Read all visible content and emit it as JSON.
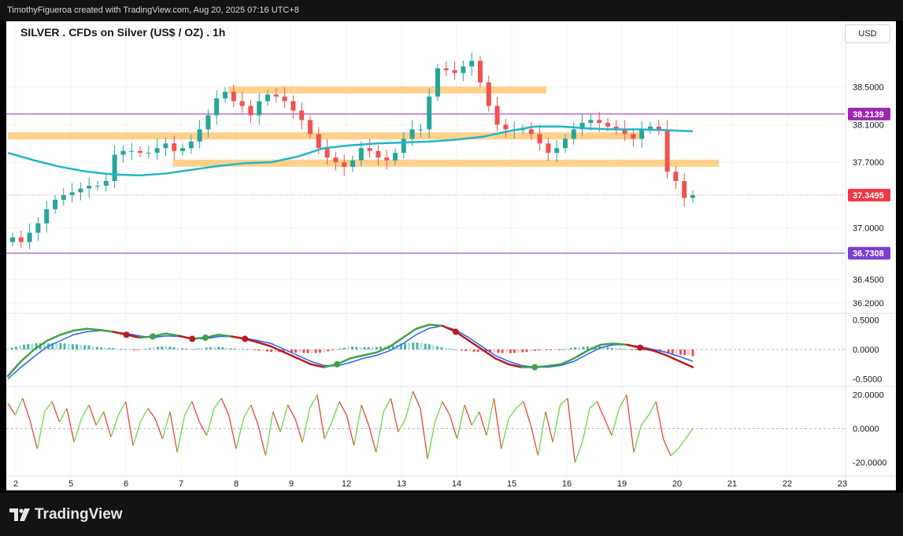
{
  "header": {
    "caption": "TimothyFigueroa created with TradingView.com, Aug 20, 2025 07:16 UTC+8"
  },
  "footer": {
    "brand": "TradingView"
  },
  "chart_data": {
    "type": "candlestick",
    "title": "SILVER . CFDs on Silver (US$ / OZ) . 1h",
    "currency": "USD",
    "price_axis": {
      "ylim": [
        36.1,
        38.95
      ],
      "ticks": [
        38.5,
        38.1,
        37.7,
        37.0,
        36.45,
        36.2
      ],
      "tick_labels": [
        "38.5000",
        "38.1000",
        "37.7000",
        "37.0000",
        "36.4500",
        "36.2000"
      ]
    },
    "x_axis": {
      "labels": [
        "2",
        "5",
        "6",
        "7",
        "8",
        "9",
        "12",
        "13",
        "14",
        "15",
        "16",
        "19",
        "20",
        "21",
        "22",
        "23"
      ]
    },
    "levels": [
      {
        "label": "38.2139",
        "value": 38.2139,
        "color": "#9c27b0"
      },
      {
        "label": "36.7308",
        "value": 36.7308,
        "color": "#7b3fd0"
      }
    ],
    "last_price": {
      "label": "37.3495",
      "value": 37.3495,
      "color": "#f23645"
    },
    "zones": [
      {
        "from": "8",
        "to": "16",
        "value": 38.47
      },
      {
        "from": "2",
        "to": "19",
        "value": 37.98
      },
      {
        "from": "7",
        "to": "21",
        "value": 37.69
      }
    ],
    "close": [
      36.9,
      36.85,
      36.95,
      37.05,
      37.2,
      37.3,
      37.35,
      37.38,
      37.42,
      37.45,
      37.45,
      37.5,
      37.78,
      37.82,
      37.82,
      37.8,
      37.8,
      37.85,
      37.9,
      37.82,
      37.85,
      37.92,
      38.05,
      38.2,
      38.38,
      38.45,
      38.35,
      38.3,
      38.2,
      38.35,
      38.42,
      38.4,
      38.35,
      38.25,
      38.15,
      38.0,
      37.85,
      37.75,
      37.7,
      37.65,
      37.72,
      37.85,
      37.82,
      37.75,
      37.72,
      37.8,
      37.95,
      38.05,
      38.05,
      38.4,
      38.7,
      38.68,
      38.65,
      38.72,
      38.78,
      38.55,
      38.3,
      38.1,
      38.05,
      38.05,
      38.05,
      38.0,
      37.9,
      37.8,
      37.85,
      37.95,
      38.05,
      38.12,
      38.15,
      38.12,
      38.08,
      38.05,
      38.0,
      37.95,
      38.05,
      38.08,
      38.05,
      37.6,
      37.5,
      37.32,
      37.35
    ],
    "ema": [
      37.8,
      37.72,
      37.65,
      37.6,
      37.57,
      37.56,
      37.58,
      37.62,
      37.66,
      37.69,
      37.7,
      37.76,
      37.85,
      37.88,
      37.9,
      37.91,
      37.92,
      37.94,
      37.97,
      38.03,
      38.08,
      38.08,
      38.06,
      38.05,
      38.05,
      38.04,
      38.03
    ],
    "ema_color": "#22b5c4",
    "macd": {
      "ylim": [
        -0.6,
        0.6
      ],
      "ticks": [
        0.5,
        0.0,
        -0.5
      ],
      "tick_labels": [
        "0.5000",
        "0.0000",
        "-0.5000"
      ],
      "fast": [
        -0.45,
        -0.2,
        0.0,
        0.15,
        0.25,
        0.32,
        0.35,
        0.33,
        0.3,
        0.25,
        0.2,
        0.22,
        0.27,
        0.23,
        0.18,
        0.2,
        0.25,
        0.22,
        0.18,
        0.12,
        0.05,
        -0.05,
        -0.15,
        -0.25,
        -0.3,
        -0.25,
        -0.15,
        -0.1,
        -0.05,
        0.05,
        0.2,
        0.35,
        0.42,
        0.4,
        0.3,
        0.15,
        0.0,
        -0.15,
        -0.25,
        -0.3,
        -0.3,
        -0.28,
        -0.25,
        -0.15,
        -0.02,
        0.08,
        0.1,
        0.08,
        0.03,
        -0.02,
        -0.1,
        -0.2,
        -0.3
      ],
      "slow": [
        -0.5,
        -0.3,
        -0.12,
        0.05,
        0.15,
        0.25,
        0.3,
        0.32,
        0.3,
        0.27,
        0.23,
        0.2,
        0.23,
        0.22,
        0.19,
        0.18,
        0.22,
        0.22,
        0.19,
        0.15,
        0.1,
        0.0,
        -0.1,
        -0.2,
        -0.27,
        -0.28,
        -0.22,
        -0.15,
        -0.1,
        -0.02,
        0.1,
        0.25,
        0.36,
        0.4,
        0.33,
        0.2,
        0.05,
        -0.1,
        -0.2,
        -0.27,
        -0.3,
        -0.3,
        -0.27,
        -0.2,
        -0.08,
        0.03,
        0.08,
        0.08,
        0.05,
        0.0,
        -0.05,
        -0.12,
        -0.2
      ]
    },
    "oscillator": {
      "ylim": [
        -22,
        24
      ],
      "ticks": [
        20,
        0,
        -20
      ],
      "tick_labels": [
        "20.0000",
        "0.0000",
        "-20.0000"
      ],
      "values": [
        15,
        8,
        18,
        5,
        -12,
        10,
        16,
        4,
        12,
        -8,
        6,
        14,
        2,
        10,
        -5,
        8,
        16,
        -10,
        4,
        12,
        6,
        -6,
        10,
        -14,
        8,
        16,
        4,
        -4,
        12,
        18,
        8,
        -12,
        6,
        14,
        2,
        -16,
        10,
        -2,
        14,
        6,
        -8,
        12,
        20,
        -6,
        4,
        16,
        8,
        -10,
        14,
        2,
        -14,
        10,
        18,
        -2,
        6,
        22,
        12,
        -18,
        4,
        16,
        8,
        -6,
        14,
        2,
        10,
        -4,
        18,
        -12,
        6,
        12,
        16,
        2,
        -16,
        10,
        -8,
        14,
        18,
        -20,
        -8,
        12,
        16,
        6,
        -4,
        12,
        20,
        -14,
        2,
        8,
        16,
        -6,
        -16,
        -12,
        -6,
        0
      ]
    }
  }
}
